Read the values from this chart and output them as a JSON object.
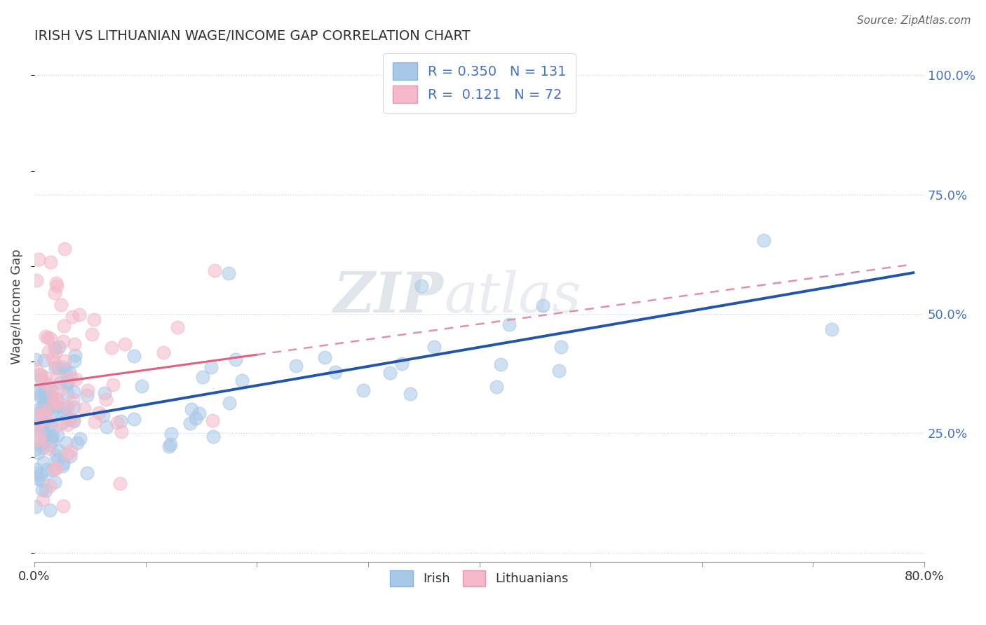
{
  "title": "IRISH VS LITHUANIAN WAGE/INCOME GAP CORRELATION CHART",
  "source": "Source: ZipAtlas.com",
  "ylabel": "Wage/Income Gap",
  "xlim": [
    0.0,
    0.8
  ],
  "ylim": [
    -0.02,
    1.05
  ],
  "irish_color": "#a8c8e8",
  "irish_edge_color": "#a8c8e8",
  "lithuanian_color": "#f4b8c8",
  "lithuanian_edge_color": "#f4b8c8",
  "irish_line_color": "#2255aa",
  "lithuanian_line_color_solid": "#e06080",
  "lithuanian_line_color_dashed": "#e090a8",
  "irish_R": 0.35,
  "irish_N": 131,
  "lithuanian_R": 0.121,
  "lithuanian_N": 72,
  "watermark": "ZIPatlas",
  "background_color": "#ffffff",
  "grid_color": "#c8d4e8"
}
